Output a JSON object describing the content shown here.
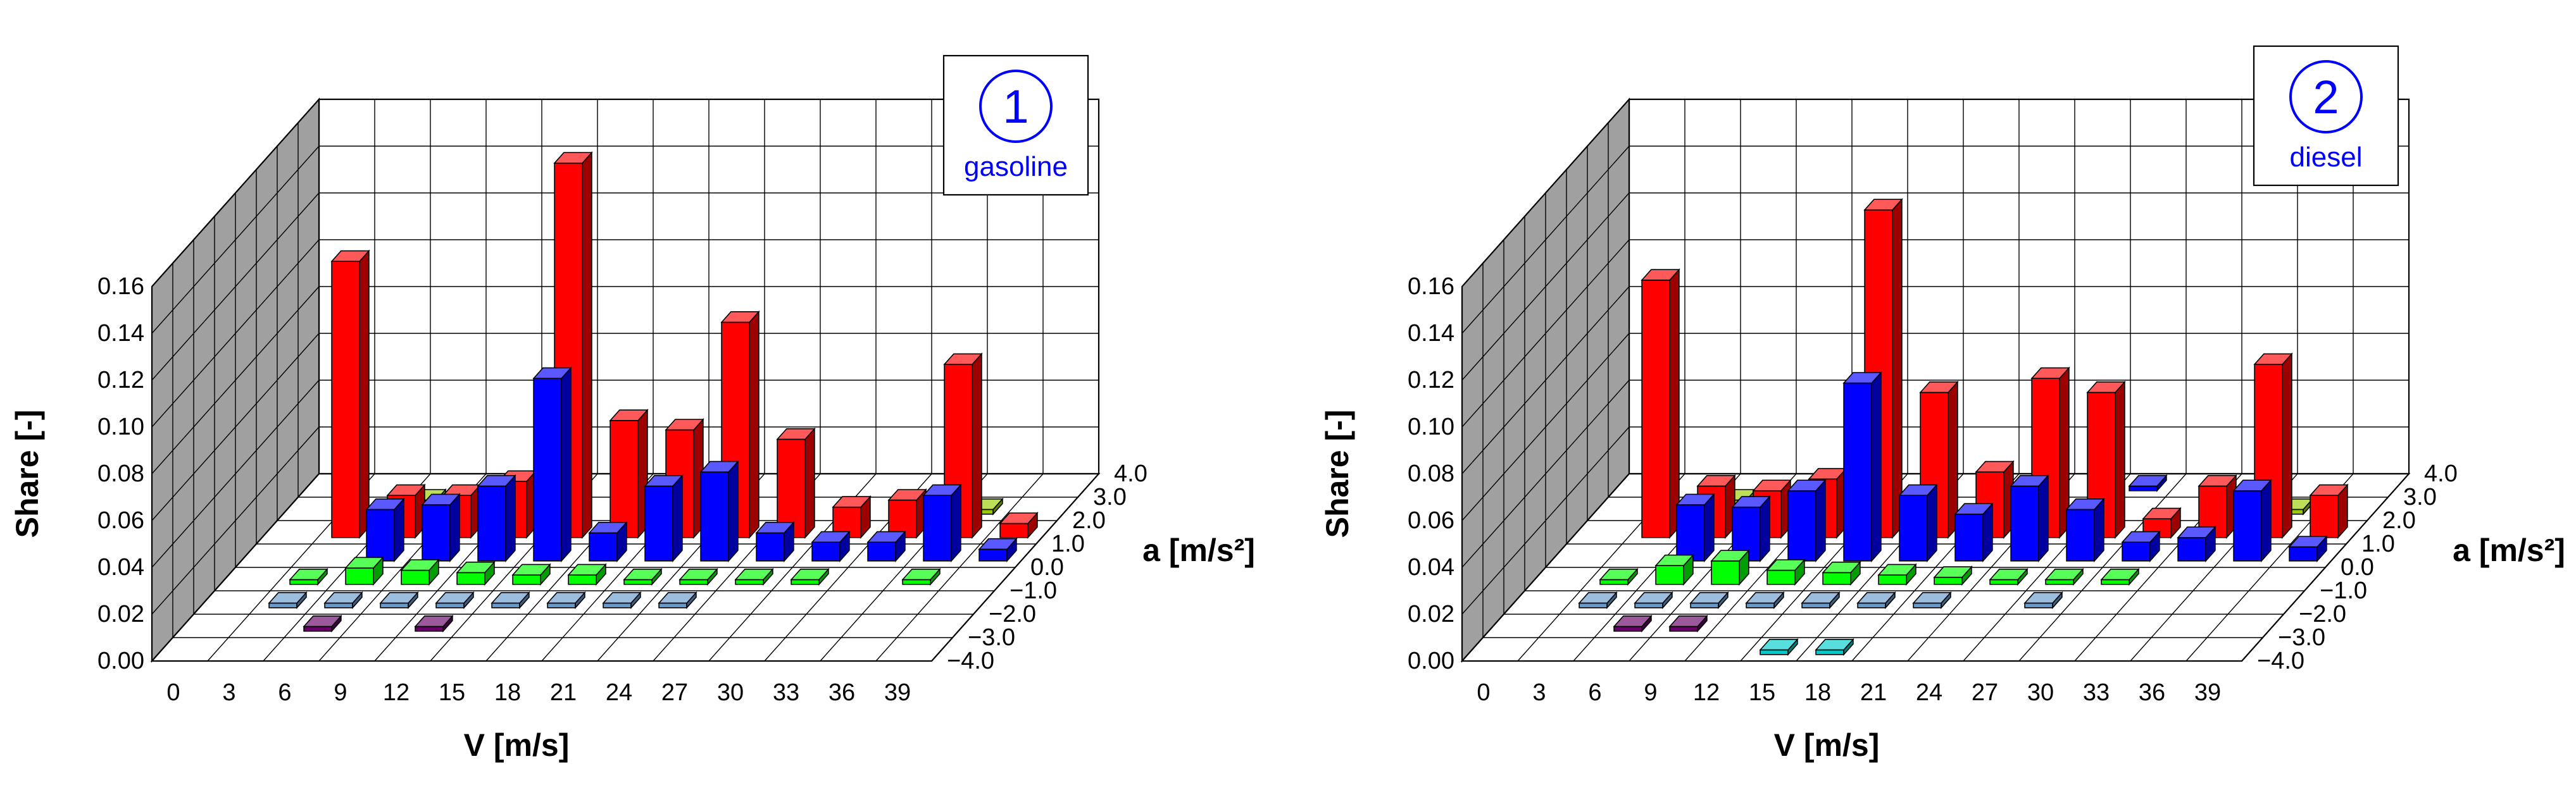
{
  "colors": {
    "background": "#ffffff",
    "grid": "#000000",
    "wall": "#a0a0a0",
    "wall_dark": "#8a8a8a",
    "label": "#000000",
    "accent": "#0000ff"
  },
  "series_colors": {
    "4.0": "#ff0000",
    "3.0": "#0000ff",
    "2.0": "#99cc00",
    "1.0": "#ff0000",
    "0.0": "#0000ff",
    "-1.0": "#00ff00",
    "-2.0": "#6699cc",
    "-3.0": "#660066",
    "-4.0": "#00cccc"
  },
  "chart_data": [
    {
      "type": "bar3d",
      "title": "gasoline",
      "badge": "1",
      "xlabel": "V [m/s]",
      "ylabel": "Share [-]",
      "zlabel": "a [m/s²]",
      "x_ticks": [
        "0",
        "3",
        "6",
        "9",
        "12",
        "15",
        "18",
        "21",
        "24",
        "27",
        "30",
        "33",
        "36",
        "39"
      ],
      "z_ticks": [
        "4.0",
        "3.0",
        "2.0",
        "1.0",
        "0.0",
        "−1.0",
        "−2.0",
        "−3.0",
        "−4.0"
      ],
      "y_ticks": [
        "0.00",
        "0.02",
        "0.04",
        "0.06",
        "0.08",
        "0.10",
        "0.12",
        "0.14",
        "0.16"
      ],
      "ylim": [
        0,
        0.16
      ],
      "bars": [
        {
          "x": 3,
          "a": "1.0",
          "value": 0.118
        },
        {
          "x": 6,
          "a": "1.0",
          "value": 0.018
        },
        {
          "x": 9,
          "a": "1.0",
          "value": 0.018
        },
        {
          "x": 12,
          "a": "1.0",
          "value": 0.024
        },
        {
          "x": 15,
          "a": "1.0",
          "value": 0.16
        },
        {
          "x": 18,
          "a": "1.0",
          "value": 0.05
        },
        {
          "x": 21,
          "a": "1.0",
          "value": 0.046
        },
        {
          "x": 24,
          "a": "1.0",
          "value": 0.092
        },
        {
          "x": 27,
          "a": "1.0",
          "value": 0.042
        },
        {
          "x": 30,
          "a": "1.0",
          "value": 0.013
        },
        {
          "x": 33,
          "a": "1.0",
          "value": 0.016
        },
        {
          "x": 36,
          "a": "1.0",
          "value": 0.074
        },
        {
          "x": 39,
          "a": "1.0",
          "value": 0.006
        },
        {
          "x": 6,
          "a": "0.0",
          "value": 0.022
        },
        {
          "x": 9,
          "a": "0.0",
          "value": 0.024
        },
        {
          "x": 12,
          "a": "0.0",
          "value": 0.032
        },
        {
          "x": 15,
          "a": "0.0",
          "value": 0.078
        },
        {
          "x": 18,
          "a": "0.0",
          "value": 0.012
        },
        {
          "x": 21,
          "a": "0.0",
          "value": 0.032
        },
        {
          "x": 24,
          "a": "0.0",
          "value": 0.038
        },
        {
          "x": 27,
          "a": "0.0",
          "value": 0.012
        },
        {
          "x": 30,
          "a": "0.0",
          "value": 0.008
        },
        {
          "x": 33,
          "a": "0.0",
          "value": 0.008
        },
        {
          "x": 36,
          "a": "0.0",
          "value": 0.028
        },
        {
          "x": 39,
          "a": "0.0",
          "value": 0.005
        },
        {
          "x": 6,
          "a": "2.0",
          "value": 0.006
        },
        {
          "x": 9,
          "a": "2.0",
          "value": 0.006
        },
        {
          "x": 12,
          "a": "2.0",
          "value": 0.003
        },
        {
          "x": 36,
          "a": "2.0",
          "value": 0.002
        },
        {
          "x": 3,
          "a": "-1.0",
          "value": 0.002
        },
        {
          "x": 6,
          "a": "-1.0",
          "value": 0.007
        },
        {
          "x": 9,
          "a": "-1.0",
          "value": 0.006
        },
        {
          "x": 12,
          "a": "-1.0",
          "value": 0.005
        },
        {
          "x": 15,
          "a": "-1.0",
          "value": 0.004
        },
        {
          "x": 18,
          "a": "-1.0",
          "value": 0.004
        },
        {
          "x": 21,
          "a": "-1.0",
          "value": 0.002
        },
        {
          "x": 24,
          "a": "-1.0",
          "value": 0.002
        },
        {
          "x": 27,
          "a": "-1.0",
          "value": 0.002
        },
        {
          "x": 30,
          "a": "-1.0",
          "value": 0.002
        },
        {
          "x": 36,
          "a": "-1.0",
          "value": 0.002
        },
        {
          "x": 3,
          "a": "-2.0",
          "value": 0.002
        },
        {
          "x": 6,
          "a": "-2.0",
          "value": 0.002
        },
        {
          "x": 9,
          "a": "-2.0",
          "value": 0.002
        },
        {
          "x": 12,
          "a": "-2.0",
          "value": 0.002
        },
        {
          "x": 15,
          "a": "-2.0",
          "value": 0.002
        },
        {
          "x": 18,
          "a": "-2.0",
          "value": 0.002
        },
        {
          "x": 21,
          "a": "-2.0",
          "value": 0.002
        },
        {
          "x": 24,
          "a": "-2.0",
          "value": 0.002
        },
        {
          "x": 6,
          "a": "-3.0",
          "value": 0.002
        },
        {
          "x": 12,
          "a": "-3.0",
          "value": 0.002
        }
      ]
    },
    {
      "type": "bar3d",
      "title": "diesel",
      "badge": "2",
      "xlabel": "V [m/s]",
      "ylabel": "Share [-]",
      "zlabel": "a [m/s²]",
      "x_ticks": [
        "0",
        "3",
        "6",
        "9",
        "12",
        "15",
        "18",
        "21",
        "24",
        "27",
        "30",
        "33",
        "36",
        "39"
      ],
      "z_ticks": [
        "4.0",
        "3.0",
        "2.0",
        "1.0",
        "0.0",
        "−1.0",
        "−2.0",
        "−3.0",
        "−4.0"
      ],
      "y_ticks": [
        "0.00",
        "0.02",
        "0.04",
        "0.06",
        "0.08",
        "0.10",
        "0.12",
        "0.14",
        "0.16"
      ],
      "ylim": [
        0,
        0.16
      ],
      "bars": [
        {
          "x": 3,
          "a": "1.0",
          "value": 0.11
        },
        {
          "x": 6,
          "a": "1.0",
          "value": 0.022
        },
        {
          "x": 9,
          "a": "1.0",
          "value": 0.02
        },
        {
          "x": 12,
          "a": "1.0",
          "value": 0.025
        },
        {
          "x": 15,
          "a": "1.0",
          "value": 0.14
        },
        {
          "x": 18,
          "a": "1.0",
          "value": 0.062
        },
        {
          "x": 21,
          "a": "1.0",
          "value": 0.028
        },
        {
          "x": 24,
          "a": "1.0",
          "value": 0.068
        },
        {
          "x": 27,
          "a": "1.0",
          "value": 0.062
        },
        {
          "x": 30,
          "a": "1.0",
          "value": 0.008
        },
        {
          "x": 33,
          "a": "1.0",
          "value": 0.022
        },
        {
          "x": 36,
          "a": "1.0",
          "value": 0.074
        },
        {
          "x": 39,
          "a": "1.0",
          "value": 0.018
        },
        {
          "x": 6,
          "a": "0.0",
          "value": 0.024
        },
        {
          "x": 9,
          "a": "0.0",
          "value": 0.023
        },
        {
          "x": 12,
          "a": "0.0",
          "value": 0.03
        },
        {
          "x": 15,
          "a": "0.0",
          "value": 0.076
        },
        {
          "x": 18,
          "a": "0.0",
          "value": 0.028
        },
        {
          "x": 21,
          "a": "0.0",
          "value": 0.02
        },
        {
          "x": 24,
          "a": "0.0",
          "value": 0.032
        },
        {
          "x": 27,
          "a": "0.0",
          "value": 0.022
        },
        {
          "x": 30,
          "a": "0.0",
          "value": 0.008
        },
        {
          "x": 33,
          "a": "0.0",
          "value": 0.01
        },
        {
          "x": 36,
          "a": "0.0",
          "value": 0.03
        },
        {
          "x": 39,
          "a": "0.0",
          "value": 0.006
        },
        {
          "x": 6,
          "a": "2.0",
          "value": 0.006
        },
        {
          "x": 9,
          "a": "2.0",
          "value": 0.006
        },
        {
          "x": 36,
          "a": "2.0",
          "value": 0.002
        },
        {
          "x": 3,
          "a": "-1.0",
          "value": 0.002
        },
        {
          "x": 6,
          "a": "-1.0",
          "value": 0.008
        },
        {
          "x": 9,
          "a": "-1.0",
          "value": 0.01
        },
        {
          "x": 12,
          "a": "-1.0",
          "value": 0.006
        },
        {
          "x": 15,
          "a": "-1.0",
          "value": 0.005
        },
        {
          "x": 18,
          "a": "-1.0",
          "value": 0.004
        },
        {
          "x": 21,
          "a": "-1.0",
          "value": 0.003
        },
        {
          "x": 24,
          "a": "-1.0",
          "value": 0.002
        },
        {
          "x": 27,
          "a": "-1.0",
          "value": 0.002
        },
        {
          "x": 30,
          "a": "-1.0",
          "value": 0.002
        },
        {
          "x": 3,
          "a": "-2.0",
          "value": 0.002
        },
        {
          "x": 6,
          "a": "-2.0",
          "value": 0.002
        },
        {
          "x": 9,
          "a": "-2.0",
          "value": 0.002
        },
        {
          "x": 12,
          "a": "-2.0",
          "value": 0.002
        },
        {
          "x": 15,
          "a": "-2.0",
          "value": 0.002
        },
        {
          "x": 18,
          "a": "-2.0",
          "value": 0.002
        },
        {
          "x": 21,
          "a": "-2.0",
          "value": 0.002
        },
        {
          "x": 27,
          "a": "-2.0",
          "value": 0.002
        },
        {
          "x": 6,
          "a": "-3.0",
          "value": 0.002
        },
        {
          "x": 9,
          "a": "-3.0",
          "value": 0.002
        },
        {
          "x": 15,
          "a": "-4.0",
          "value": 0.002
        },
        {
          "x": 18,
          "a": "-4.0",
          "value": 0.002
        },
        {
          "x": 27,
          "a": "3.0",
          "value": 0.002
        }
      ]
    }
  ]
}
